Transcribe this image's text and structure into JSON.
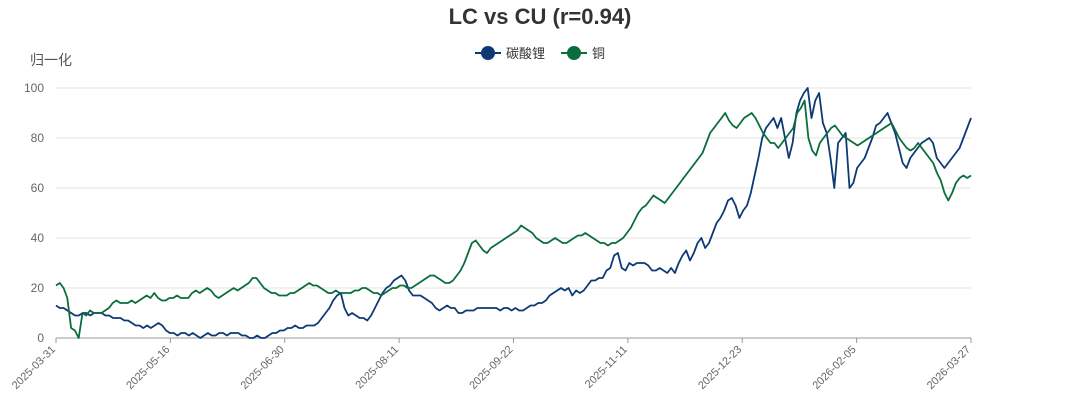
{
  "chart_data": {
    "type": "line",
    "title": "LC vs CU (r=0.94)",
    "ylabel": "归一化",
    "xlabel": "",
    "ylim": [
      0,
      100
    ],
    "yticks": [
      0,
      20,
      40,
      60,
      80,
      100
    ],
    "xticks": [
      "2025-03-31",
      "2025-05-16",
      "2025-06-30",
      "2025-08-11",
      "2025-09-22",
      "2025-11-11",
      "2025-12-23",
      "2026-02-05",
      "2026-03-27"
    ],
    "grid": true,
    "legend_position": "top-center",
    "series": [
      {
        "name": "碳酸锂",
        "color": "#0d3a75",
        "values": [
          13,
          12,
          12,
          11,
          10,
          9,
          9,
          10,
          10,
          9,
          10,
          10,
          10,
          9,
          9,
          8,
          8,
          8,
          7,
          7,
          6,
          5,
          5,
          4,
          5,
          4,
          5,
          6,
          5,
          3,
          2,
          2,
          1,
          2,
          2,
          1,
          2,
          1,
          0,
          1,
          2,
          1,
          1,
          2,
          2,
          1,
          2,
          2,
          2,
          1,
          1,
          0,
          0,
          1,
          0,
          0,
          1,
          2,
          2,
          3,
          3,
          4,
          4,
          5,
          4,
          4,
          5,
          5,
          5,
          6,
          8,
          10,
          12,
          15,
          17,
          18,
          12,
          9,
          10,
          9,
          8,
          8,
          7,
          9,
          12,
          15,
          18,
          20,
          21,
          23,
          24,
          25,
          23,
          19,
          17,
          17,
          17,
          16,
          15,
          14,
          12,
          11,
          12,
          13,
          12,
          12,
          10,
          10,
          11,
          11,
          11,
          12,
          12,
          12,
          12,
          12,
          12,
          11,
          12,
          12,
          11,
          12,
          11,
          11,
          12,
          13,
          13,
          14,
          14,
          15,
          17,
          18,
          19,
          20,
          19,
          20,
          17,
          19,
          18,
          19,
          21,
          23,
          23,
          24,
          24,
          27,
          28,
          33,
          34,
          28,
          27,
          30,
          29,
          30,
          30,
          30,
          29,
          27,
          27,
          28,
          27,
          26,
          28,
          26,
          30,
          33,
          35,
          31,
          34,
          38,
          40,
          36,
          38,
          42,
          46,
          48,
          51,
          55,
          56,
          53,
          48,
          51,
          53,
          58,
          65,
          72,
          80,
          84,
          86,
          88,
          84,
          88,
          80,
          72,
          78,
          90,
          95,
          98,
          100,
          88,
          95,
          98,
          86,
          82,
          72,
          60,
          78,
          80,
          82,
          60,
          62,
          68,
          70,
          72,
          76,
          80,
          85,
          86,
          88,
          90,
          86,
          82,
          76,
          70,
          68,
          72,
          74,
          76,
          78,
          79,
          80,
          78,
          72,
          70,
          68,
          70,
          72,
          74,
          76,
          80,
          84,
          88
        ],
        "label_visible": false
      },
      {
        "name": "铜",
        "color": "#0a6d3c",
        "values": [
          21,
          22,
          20,
          16,
          4,
          3,
          0,
          10,
          9,
          11,
          10,
          10,
          10,
          11,
          12,
          14,
          15,
          14,
          14,
          14,
          15,
          14,
          15,
          16,
          17,
          16,
          18,
          16,
          15,
          15,
          16,
          16,
          17,
          16,
          16,
          16,
          18,
          19,
          18,
          19,
          20,
          19,
          17,
          16,
          17,
          18,
          19,
          20,
          19,
          20,
          21,
          22,
          24,
          24,
          22,
          20,
          19,
          18,
          18,
          17,
          17,
          17,
          18,
          18,
          19,
          20,
          21,
          22,
          21,
          21,
          20,
          19,
          18,
          18,
          19,
          18,
          18,
          18,
          18,
          19,
          19,
          20,
          20,
          19,
          18,
          18,
          17,
          18,
          19,
          20,
          20,
          21,
          21,
          20,
          20,
          21,
          22,
          23,
          24,
          25,
          25,
          24,
          23,
          22,
          22,
          23,
          25,
          27,
          30,
          34,
          38,
          39,
          37,
          35,
          34,
          36,
          37,
          38,
          39,
          40,
          41,
          42,
          43,
          45,
          44,
          43,
          42,
          40,
          39,
          38,
          38,
          39,
          40,
          39,
          38,
          38,
          39,
          40,
          41,
          41,
          42,
          41,
          40,
          39,
          38,
          38,
          37,
          38,
          38,
          39,
          40,
          42,
          44,
          47,
          50,
          52,
          53,
          55,
          57,
          56,
          55,
          54,
          56,
          58,
          60,
          62,
          64,
          66,
          68,
          70,
          72,
          74,
          78,
          82,
          84,
          86,
          88,
          90,
          87,
          85,
          84,
          86,
          88,
          89,
          90,
          88,
          85,
          82,
          80,
          78,
          78,
          76,
          78,
          80,
          82,
          84,
          90,
          92,
          95,
          80,
          75,
          73,
          78,
          80,
          82,
          84,
          85,
          83,
          81,
          80,
          79,
          78,
          77,
          78,
          79,
          80,
          81,
          82,
          83,
          84,
          85,
          86,
          83,
          80,
          78,
          76,
          75,
          76,
          78,
          76,
          74,
          72,
          70,
          66,
          63,
          58,
          55,
          58,
          62,
          64,
          65,
          64,
          65
        ]
      }
    ]
  }
}
